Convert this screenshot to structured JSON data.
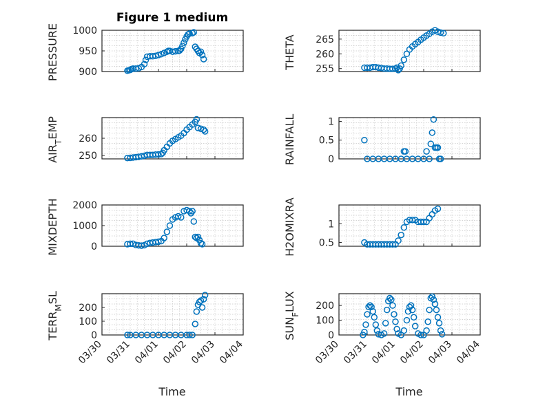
{
  "chart_data": {
    "type": "scatter",
    "title": "Figure 1 medium",
    "marker_color": "#0072BD",
    "xlabel": "Time",
    "xticks": [
      "03/30",
      "03/31",
      "04/01",
      "04/02",
      "04/03",
      "04/04"
    ],
    "xlim": [
      "03/30",
      "04/04"
    ],
    "grid": true,
    "subplots": [
      {
        "ylabel": "PRESSURE",
        "yticks": [
          900,
          950,
          1000
        ],
        "ylim": [
          900,
          1000
        ],
        "points": [
          [
            0.9,
            902
          ],
          [
            0.95,
            903
          ],
          [
            1.0,
            904
          ],
          [
            1.05,
            906
          ],
          [
            1.1,
            907
          ],
          [
            1.2,
            907
          ],
          [
            1.3,
            908
          ],
          [
            1.4,
            911
          ],
          [
            1.5,
            918
          ],
          [
            1.55,
            928
          ],
          [
            1.6,
            936
          ],
          [
            1.7,
            937
          ],
          [
            1.8,
            937
          ],
          [
            1.9,
            938
          ],
          [
            2.0,
            940
          ],
          [
            2.1,
            942
          ],
          [
            2.2,
            945
          ],
          [
            2.3,
            948
          ],
          [
            2.35,
            950
          ],
          [
            2.4,
            950
          ],
          [
            2.5,
            948
          ],
          [
            2.6,
            949
          ],
          [
            2.7,
            950
          ],
          [
            2.75,
            951
          ],
          [
            2.8,
            955
          ],
          [
            2.85,
            962
          ],
          [
            2.9,
            970
          ],
          [
            2.95,
            978
          ],
          [
            3.0,
            985
          ],
          [
            3.05,
            990
          ],
          [
            3.1,
            992
          ],
          [
            3.2,
            993
          ],
          [
            3.25,
            995
          ],
          [
            3.3,
            960
          ],
          [
            3.35,
            955
          ],
          [
            3.4,
            950
          ],
          [
            3.45,
            945
          ],
          [
            3.5,
            948
          ],
          [
            3.55,
            940
          ],
          [
            3.6,
            930
          ]
        ]
      },
      {
        "ylabel": "THETA",
        "yticks": [
          255,
          260,
          265
        ],
        "ylim": [
          254,
          268
        ],
        "points": [
          [
            0.9,
            255.3
          ],
          [
            1.0,
            255.3
          ],
          [
            1.1,
            255.3
          ],
          [
            1.2,
            255.5
          ],
          [
            1.3,
            255.5
          ],
          [
            1.4,
            255.3
          ],
          [
            1.5,
            255.2
          ],
          [
            1.6,
            255.0
          ],
          [
            1.7,
            255.0
          ],
          [
            1.8,
            254.9
          ],
          [
            1.9,
            254.9
          ],
          [
            2.0,
            255.0
          ],
          [
            2.05,
            255.3
          ],
          [
            2.1,
            254.5
          ],
          [
            2.15,
            255.0
          ],
          [
            2.2,
            256.0
          ],
          [
            2.3,
            258.0
          ],
          [
            2.4,
            260.0
          ],
          [
            2.5,
            261.5
          ],
          [
            2.6,
            262.5
          ],
          [
            2.7,
            263.3
          ],
          [
            2.8,
            264.0
          ],
          [
            2.9,
            264.8
          ],
          [
            3.0,
            265.5
          ],
          [
            3.1,
            266.2
          ],
          [
            3.2,
            266.8
          ],
          [
            3.3,
            267.5
          ],
          [
            3.4,
            268.0
          ],
          [
            3.5,
            267.5
          ],
          [
            3.6,
            267.2
          ],
          [
            3.7,
            267.0
          ]
        ]
      },
      {
        "ylabel": "AIR_TEMP",
        "yticks": [
          250,
          260
        ],
        "ylim": [
          248,
          272
        ],
        "points": [
          [
            0.9,
            248.5
          ],
          [
            1.0,
            248.6
          ],
          [
            1.1,
            248.8
          ],
          [
            1.2,
            249.0
          ],
          [
            1.3,
            249.2
          ],
          [
            1.4,
            249.5
          ],
          [
            1.5,
            249.8
          ],
          [
            1.6,
            250.3
          ],
          [
            1.7,
            250.3
          ],
          [
            1.8,
            250.3
          ],
          [
            1.9,
            250.5
          ],
          [
            2.0,
            250.6
          ],
          [
            2.1,
            250.8
          ],
          [
            2.15,
            251.5
          ],
          [
            2.2,
            253.0
          ],
          [
            2.3,
            255.0
          ],
          [
            2.4,
            257.0
          ],
          [
            2.5,
            258.5
          ],
          [
            2.6,
            259.5
          ],
          [
            2.7,
            260.5
          ],
          [
            2.8,
            261.5
          ],
          [
            2.9,
            263.0
          ],
          [
            3.0,
            265.0
          ],
          [
            3.1,
            266.5
          ],
          [
            3.2,
            268.0
          ],
          [
            3.3,
            269.5
          ],
          [
            3.35,
            271.0
          ],
          [
            3.4,
            266.0
          ],
          [
            3.5,
            265.5
          ],
          [
            3.6,
            265.0
          ],
          [
            3.65,
            264.0
          ]
        ]
      },
      {
        "ylabel": "RAINFALL",
        "yticks": [
          0,
          0.5,
          1
        ],
        "ylim": [
          0,
          1.1
        ],
        "points": [
          [
            0.9,
            0.5
          ],
          [
            1.0,
            0
          ],
          [
            1.2,
            0
          ],
          [
            1.4,
            0
          ],
          [
            1.6,
            0
          ],
          [
            1.8,
            0
          ],
          [
            2.0,
            0
          ],
          [
            2.2,
            0
          ],
          [
            2.3,
            0.2
          ],
          [
            2.35,
            0.2
          ],
          [
            2.4,
            0
          ],
          [
            2.6,
            0
          ],
          [
            2.8,
            0
          ],
          [
            3.0,
            0
          ],
          [
            3.1,
            0.2
          ],
          [
            3.2,
            0
          ],
          [
            3.25,
            0.4
          ],
          [
            3.3,
            0.7
          ],
          [
            3.35,
            1.05
          ],
          [
            3.4,
            0.3
          ],
          [
            3.45,
            0.3
          ],
          [
            3.5,
            0.3
          ],
          [
            3.55,
            0
          ],
          [
            3.6,
            0
          ]
        ]
      },
      {
        "ylabel": "MIXDEPTH",
        "yticks": [
          0,
          1000,
          2000
        ],
        "ylim": [
          0,
          2000
        ],
        "points": [
          [
            0.9,
            100
          ],
          [
            1.0,
            120
          ],
          [
            1.1,
            120
          ],
          [
            1.2,
            60
          ],
          [
            1.3,
            40
          ],
          [
            1.4,
            30
          ],
          [
            1.5,
            50
          ],
          [
            1.6,
            120
          ],
          [
            1.7,
            160
          ],
          [
            1.8,
            180
          ],
          [
            1.9,
            200
          ],
          [
            2.0,
            220
          ],
          [
            2.1,
            250
          ],
          [
            2.2,
            400
          ],
          [
            2.3,
            700
          ],
          [
            2.4,
            1000
          ],
          [
            2.5,
            1300
          ],
          [
            2.6,
            1400
          ],
          [
            2.7,
            1450
          ],
          [
            2.8,
            1400
          ],
          [
            2.9,
            1700
          ],
          [
            3.0,
            1750
          ],
          [
            3.1,
            1700
          ],
          [
            3.15,
            1600
          ],
          [
            3.2,
            1700
          ],
          [
            3.25,
            1200
          ],
          [
            3.3,
            450
          ],
          [
            3.35,
            400
          ],
          [
            3.4,
            450
          ],
          [
            3.45,
            300
          ],
          [
            3.5,
            150
          ],
          [
            3.55,
            100
          ]
        ]
      },
      {
        "ylabel": "H2OMIXRA",
        "yticks": [
          0.5,
          1
        ],
        "ylim": [
          0.4,
          1.5
        ],
        "points": [
          [
            0.9,
            0.5
          ],
          [
            1.0,
            0.45
          ],
          [
            1.1,
            0.45
          ],
          [
            1.2,
            0.45
          ],
          [
            1.3,
            0.45
          ],
          [
            1.4,
            0.45
          ],
          [
            1.5,
            0.45
          ],
          [
            1.6,
            0.45
          ],
          [
            1.7,
            0.45
          ],
          [
            1.8,
            0.45
          ],
          [
            1.9,
            0.45
          ],
          [
            2.0,
            0.45
          ],
          [
            2.1,
            0.55
          ],
          [
            2.2,
            0.7
          ],
          [
            2.3,
            0.9
          ],
          [
            2.4,
            1.05
          ],
          [
            2.5,
            1.1
          ],
          [
            2.6,
            1.1
          ],
          [
            2.7,
            1.1
          ],
          [
            2.8,
            1.05
          ],
          [
            2.9,
            1.05
          ],
          [
            3.0,
            1.05
          ],
          [
            3.1,
            1.05
          ],
          [
            3.2,
            1.15
          ],
          [
            3.3,
            1.25
          ],
          [
            3.4,
            1.35
          ],
          [
            3.5,
            1.4
          ]
        ]
      },
      {
        "ylabel": "TERR_MSL",
        "yticks": [
          0,
          100,
          200
        ],
        "ylim": [
          0,
          300
        ],
        "points": [
          [
            0.9,
            0
          ],
          [
            1.0,
            0
          ],
          [
            1.2,
            0
          ],
          [
            1.4,
            0
          ],
          [
            1.6,
            0
          ],
          [
            1.8,
            0
          ],
          [
            2.0,
            0
          ],
          [
            2.2,
            0
          ],
          [
            2.4,
            0
          ],
          [
            2.6,
            0
          ],
          [
            2.8,
            0
          ],
          [
            3.0,
            0
          ],
          [
            3.1,
            0
          ],
          [
            3.2,
            0
          ],
          [
            3.3,
            80
          ],
          [
            3.35,
            170
          ],
          [
            3.4,
            220
          ],
          [
            3.45,
            240
          ],
          [
            3.5,
            250
          ],
          [
            3.55,
            200
          ],
          [
            3.6,
            260
          ],
          [
            3.65,
            290
          ]
        ]
      },
      {
        "ylabel": "SUN_FLUX",
        "yticks": [
          0,
          100,
          200
        ],
        "ylim": [
          0,
          280
        ],
        "points": [
          [
            0.85,
            0
          ],
          [
            0.9,
            20
          ],
          [
            0.95,
            70
          ],
          [
            1.0,
            140
          ],
          [
            1.05,
            190
          ],
          [
            1.1,
            200
          ],
          [
            1.15,
            190
          ],
          [
            1.2,
            160
          ],
          [
            1.25,
            120
          ],
          [
            1.3,
            70
          ],
          [
            1.35,
            30
          ],
          [
            1.4,
            5
          ],
          [
            1.5,
            0
          ],
          [
            1.6,
            10
          ],
          [
            1.65,
            80
          ],
          [
            1.7,
            170
          ],
          [
            1.75,
            230
          ],
          [
            1.8,
            250
          ],
          [
            1.85,
            240
          ],
          [
            1.9,
            200
          ],
          [
            1.95,
            140
          ],
          [
            2.0,
            90
          ],
          [
            2.05,
            40
          ],
          [
            2.1,
            10
          ],
          [
            2.2,
            0
          ],
          [
            2.3,
            30
          ],
          [
            2.4,
            100
          ],
          [
            2.45,
            160
          ],
          [
            2.5,
            190
          ],
          [
            2.55,
            200
          ],
          [
            2.6,
            170
          ],
          [
            2.65,
            120
          ],
          [
            2.7,
            60
          ],
          [
            2.8,
            10
          ],
          [
            2.9,
            0
          ],
          [
            3.0,
            0
          ],
          [
            3.1,
            30
          ],
          [
            3.15,
            90
          ],
          [
            3.2,
            170
          ],
          [
            3.25,
            250
          ],
          [
            3.3,
            260
          ],
          [
            3.35,
            240
          ],
          [
            3.4,
            210
          ],
          [
            3.45,
            170
          ],
          [
            3.5,
            120
          ],
          [
            3.55,
            80
          ],
          [
            3.6,
            30
          ],
          [
            3.65,
            5
          ]
        ]
      }
    ]
  }
}
